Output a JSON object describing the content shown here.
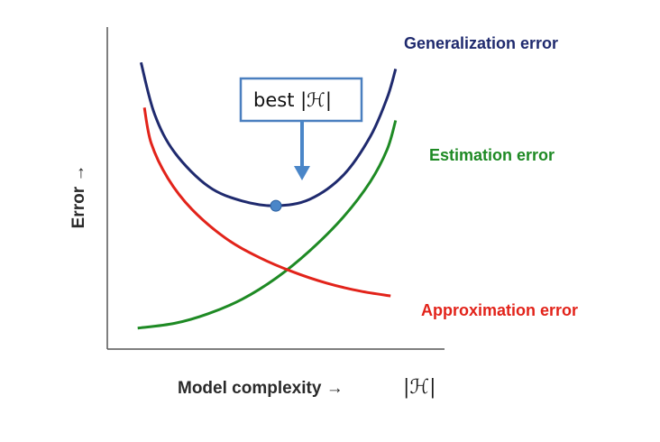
{
  "chart_data": {
    "type": "line",
    "title": "",
    "xlabel": "Model complexity →",
    "xlabel_symbol": "|ℋ|",
    "ylabel": "Error →",
    "x_range": [
      0,
      10
    ],
    "y_range": [
      0,
      10
    ],
    "grid": false,
    "legend": "none",
    "series": [
      {
        "name": "Generalization error",
        "color": "#1f2a6e",
        "points": [
          [
            1.0,
            8.9
          ],
          [
            1.4,
            7.3
          ],
          [
            2.0,
            6.1
          ],
          [
            3.0,
            5.05
          ],
          [
            4.0,
            4.6
          ],
          [
            5.0,
            4.45
          ],
          [
            6.0,
            4.65
          ],
          [
            7.0,
            5.4
          ],
          [
            7.8,
            6.6
          ],
          [
            8.3,
            7.8
          ],
          [
            8.55,
            8.7
          ]
        ]
      },
      {
        "name": "Estimation error",
        "color": "#1e8a24",
        "points": [
          [
            0.9,
            0.65
          ],
          [
            2.0,
            0.8
          ],
          [
            3.0,
            1.1
          ],
          [
            4.0,
            1.55
          ],
          [
            5.0,
            2.2
          ],
          [
            6.0,
            3.05
          ],
          [
            7.0,
            4.1
          ],
          [
            7.8,
            5.2
          ],
          [
            8.3,
            6.2
          ],
          [
            8.55,
            7.1
          ]
        ]
      },
      {
        "name": "Approximation error",
        "color": "#e2231a",
        "points": [
          [
            1.1,
            7.5
          ],
          [
            1.3,
            6.4
          ],
          [
            1.8,
            5.3
          ],
          [
            2.5,
            4.35
          ],
          [
            3.5,
            3.45
          ],
          [
            4.5,
            2.85
          ],
          [
            5.5,
            2.4
          ],
          [
            6.5,
            2.05
          ],
          [
            7.5,
            1.8
          ],
          [
            8.4,
            1.65
          ]
        ]
      }
    ],
    "annotation": {
      "text": "best |ℋ|",
      "point": [
        5.0,
        4.45
      ],
      "marker_color": "#4a86c8"
    }
  }
}
